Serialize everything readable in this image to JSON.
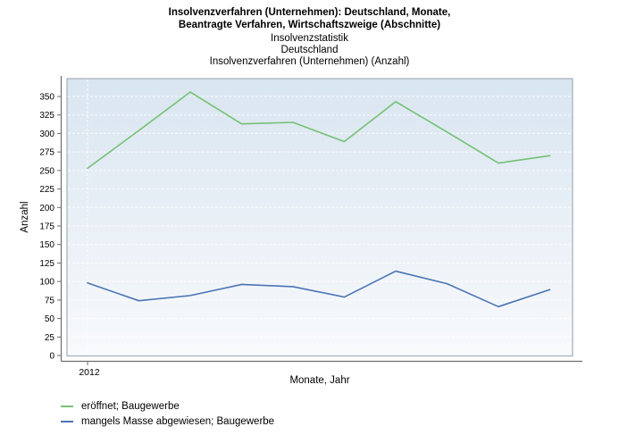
{
  "header": {
    "title_line1": "Insolvenzverfahren (Unternehmen): Deutschland, Monate,",
    "title_line2": "Beantragte Verfahren, Wirtschaftszweige (Abschnitte)",
    "subtitle_line1": "Insolvenzstatistik",
    "subtitle_line2": "Deutschland",
    "subtitle_line3": "Insolvenzverfahren (Unternehmen) (Anzahl)"
  },
  "chart_data": {
    "type": "line",
    "title": "Insolvenzverfahren (Unternehmen): Deutschland, Monate, Beantragte Verfahren, Wirtschaftszweige (Abschnitte)",
    "subtitle": [
      "Insolvenzstatistik",
      "Deutschland",
      "Insolvenzverfahren (Unternehmen) (Anzahl)"
    ],
    "xlabel": "Monate, Jahr",
    "ylabel": "Anzahl",
    "x_index": [
      1,
      2,
      3,
      4,
      5,
      6,
      7,
      8,
      9,
      10
    ],
    "x_tick_labels": [
      "2012"
    ],
    "y_ticks": [
      0,
      25,
      50,
      75,
      100,
      125,
      150,
      175,
      200,
      225,
      250,
      275,
      300,
      325,
      350
    ],
    "ylim": [
      0,
      375
    ],
    "grid": true,
    "legend_position": "bottom-left",
    "plot_bg_top": "#d9e5f0",
    "plot_bg_bottom": "#f8fafc",
    "axis_color": "#6e6e6e",
    "panel_border_color": "#a9b3bb",
    "series": [
      {
        "name": "eröffnet; Baugewerbe",
        "color": "#74c174",
        "values": [
          253,
          304,
          356,
          313,
          315,
          289,
          343,
          302,
          260,
          270
        ]
      },
      {
        "name": "mangels Masse abgewiesen; Baugewerbe",
        "color": "#4a74b4",
        "values": [
          98,
          74,
          81,
          96,
          93,
          79,
          114,
          97,
          66,
          89
        ]
      }
    ]
  }
}
